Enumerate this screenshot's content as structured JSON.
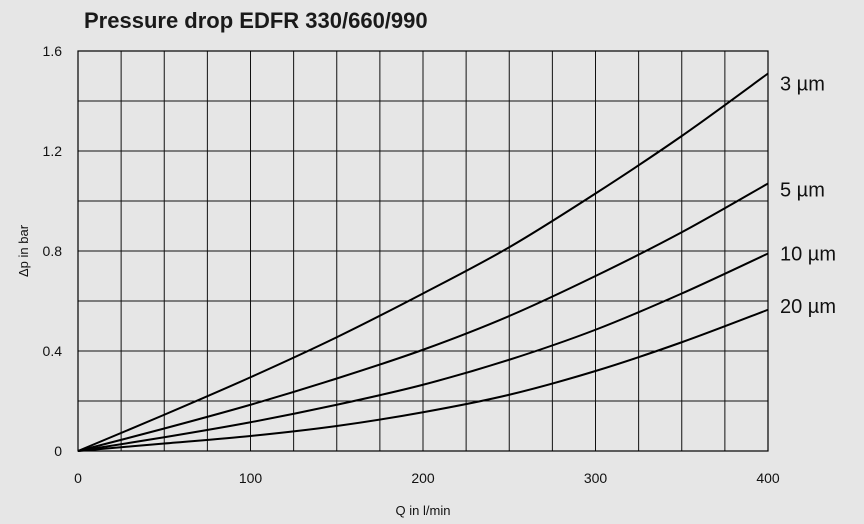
{
  "chart_data": {
    "type": "line",
    "title": "Pressure drop EDFR 330/660/990",
    "xlabel": "Q in l/min",
    "ylabel": "Δp in bar",
    "xlim": [
      0,
      400
    ],
    "ylim": [
      0,
      1.6
    ],
    "xticks": [
      "0",
      "100",
      "200",
      "300",
      "400"
    ],
    "yticks": [
      "0",
      "0.4",
      "0.8",
      "1.2",
      "1.6"
    ],
    "grid": true,
    "grid_x_step": 25,
    "grid_y_step": 0.2,
    "legend": "right-inline",
    "series": [
      {
        "name": "3 µm",
        "x": [
          0,
          50,
          100,
          150,
          200,
          250,
          300,
          350,
          400
        ],
        "y": [
          0,
          0.145,
          0.295,
          0.455,
          0.63,
          0.815,
          1.03,
          1.26,
          1.51
        ]
      },
      {
        "name": "5 µm",
        "x": [
          0,
          50,
          100,
          150,
          200,
          250,
          300,
          350,
          400
        ],
        "y": [
          0,
          0.09,
          0.185,
          0.29,
          0.405,
          0.54,
          0.7,
          0.875,
          1.07
        ]
      },
      {
        "name": "10 µm",
        "x": [
          0,
          50,
          100,
          150,
          200,
          250,
          300,
          350,
          400
        ],
        "y": [
          0,
          0.055,
          0.115,
          0.185,
          0.265,
          0.365,
          0.485,
          0.63,
          0.79
        ]
      },
      {
        "name": "20 µm",
        "x": [
          0,
          50,
          100,
          150,
          200,
          250,
          300,
          350,
          400
        ],
        "y": [
          0,
          0.03,
          0.06,
          0.1,
          0.155,
          0.225,
          0.32,
          0.435,
          0.565
        ]
      }
    ]
  }
}
